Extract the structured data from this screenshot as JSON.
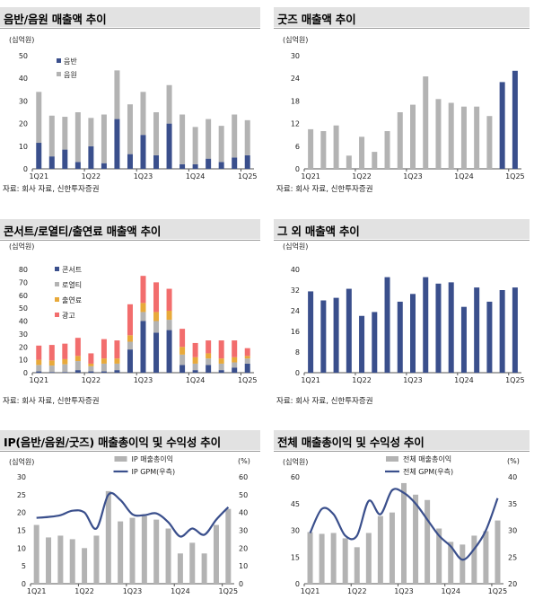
{
  "colors": {
    "navy": "#3a4f8c",
    "gray": "#b3b3b3",
    "red": "#f26d6d",
    "gold": "#e8a93a",
    "header_bg": "#e2e2e2"
  },
  "source": "자료: 회사 자료, 신한투자증권",
  "chart_data": [
    {
      "id": "album",
      "type": "bar",
      "title": "음반/음원 매출액 추이",
      "unit": "(십억원)",
      "categories": [
        "1Q21",
        "2Q21",
        "3Q21",
        "4Q21",
        "1Q22",
        "2Q22",
        "3Q22",
        "4Q22",
        "1Q23",
        "2Q23",
        "3Q23",
        "4Q23",
        "1Q24",
        "2Q24",
        "3Q24",
        "4Q24",
        "1Q25"
      ],
      "x_tick_labels": [
        "1Q21",
        "1Q22",
        "1Q23",
        "1Q24",
        "1Q25"
      ],
      "series": [
        {
          "name": "음반",
          "values": [
            11.5,
            5.5,
            8.5,
            3,
            10,
            2.5,
            22,
            6.5,
            15,
            6,
            20,
            2,
            2,
            4.5,
            3,
            5,
            6
          ]
        },
        {
          "name": "음원",
          "values": [
            22.5,
            18,
            14.5,
            22,
            12.5,
            21.5,
            21.5,
            22,
            19,
            19,
            17,
            22,
            16.5,
            17.5,
            16,
            19,
            15.5
          ]
        }
      ],
      "ylim": [
        0,
        50
      ],
      "yticks": [
        0,
        10,
        20,
        30,
        40,
        50
      ],
      "legend": "top-left"
    },
    {
      "id": "goods",
      "type": "bar",
      "title": "굿즈 매출액 추이",
      "unit": "(십억원)",
      "categories": [
        "1Q21",
        "2Q21",
        "3Q21",
        "4Q21",
        "1Q22",
        "2Q22",
        "3Q22",
        "4Q22",
        "1Q23",
        "2Q23",
        "3Q23",
        "4Q23",
        "1Q24",
        "2Q24",
        "3Q24",
        "4Q24",
        "1Q25"
      ],
      "x_tick_labels": [
        "1Q21",
        "1Q22",
        "1Q23",
        "1Q24",
        "1Q25"
      ],
      "values": [
        10.5,
        10,
        11.5,
        3.5,
        8.5,
        4.5,
        10,
        15,
        17,
        24.5,
        18.5,
        17.5,
        16.5,
        16.5,
        14,
        23,
        26
      ],
      "highlight": [
        false,
        false,
        false,
        false,
        false,
        false,
        false,
        false,
        false,
        false,
        false,
        false,
        false,
        false,
        false,
        true,
        true
      ],
      "ylim": [
        0,
        30
      ],
      "yticks": [
        0,
        6,
        12,
        18,
        24,
        30
      ]
    },
    {
      "id": "concert",
      "type": "bar",
      "title": "콘서트/로열티/출연료 매출액 추이",
      "unit": "(십억원)",
      "categories": [
        "1Q21",
        "2Q21",
        "3Q21",
        "4Q21",
        "1Q22",
        "2Q22",
        "3Q22",
        "4Q22",
        "1Q23",
        "2Q23",
        "3Q23",
        "4Q23",
        "1Q24",
        "2Q24",
        "3Q24",
        "4Q24",
        "1Q25"
      ],
      "x_tick_labels": [
        "1Q21",
        "1Q22",
        "1Q23",
        "1Q24",
        "1Q25"
      ],
      "series": [
        {
          "name": "콘서트",
          "values": [
            1,
            0.5,
            0.5,
            2,
            1,
            1,
            2,
            18,
            40,
            31,
            33,
            6,
            2,
            6,
            2,
            4,
            7
          ]
        },
        {
          "name": "로열티",
          "values": [
            5,
            5,
            6,
            7,
            4,
            6,
            5,
            6,
            7,
            9,
            8,
            8,
            5,
            5,
            5,
            4,
            4
          ]
        },
        {
          "name": "출연료",
          "values": [
            4,
            4,
            4,
            4,
            2,
            4,
            4,
            5,
            7,
            7,
            7,
            6,
            5,
            4,
            4,
            4,
            2
          ]
        },
        {
          "name": "광고",
          "values": [
            11,
            12,
            12,
            14,
            8,
            15,
            14,
            24,
            21,
            23,
            17,
            14,
            11,
            10,
            14,
            13,
            6
          ]
        }
      ],
      "ylim": [
        0,
        80
      ],
      "yticks": [
        0,
        10,
        20,
        30,
        40,
        50,
        60,
        70,
        80
      ],
      "legend": "top-left"
    },
    {
      "id": "other",
      "type": "bar",
      "title": "그 외 매출액 추이",
      "unit": "(십억원)",
      "categories": [
        "1Q21",
        "2Q21",
        "3Q21",
        "4Q21",
        "1Q22",
        "2Q22",
        "3Q22",
        "4Q22",
        "1Q23",
        "2Q23",
        "3Q23",
        "4Q23",
        "1Q24",
        "2Q24",
        "3Q24",
        "4Q24",
        "1Q25"
      ],
      "x_tick_labels": [
        "1Q21",
        "1Q22",
        "1Q23",
        "1Q24",
        "1Q25"
      ],
      "values": [
        31.5,
        28,
        29,
        32.5,
        22,
        23.5,
        37,
        27.5,
        30.5,
        37,
        34.5,
        35,
        25.5,
        33,
        27.5,
        32,
        33
      ],
      "ylim": [
        0,
        40
      ],
      "yticks": [
        0,
        8,
        16,
        24,
        32,
        40
      ]
    },
    {
      "id": "ip",
      "type": "bar-line",
      "title": "IP(음반/음원/굿즈) 매출총이익 및 수익성 추이",
      "unit_left": "(십억원)",
      "unit_right": "(%)",
      "categories": [
        "1Q21",
        "2Q21",
        "3Q21",
        "4Q21",
        "1Q22",
        "2Q22",
        "3Q22",
        "4Q22",
        "1Q23",
        "2Q23",
        "3Q23",
        "4Q23",
        "1Q24",
        "2Q24",
        "3Q24",
        "4Q24",
        "1Q25"
      ],
      "x_tick_labels": [
        "1Q21",
        "1Q22",
        "1Q23",
        "1Q24",
        "1Q25"
      ],
      "bar_series": {
        "name": "IP 매출총이익",
        "values": [
          16.5,
          13,
          13.5,
          12.5,
          10,
          13.5,
          26,
          17.5,
          18.5,
          19,
          18,
          15.5,
          8.5,
          11.5,
          8.5,
          16.5,
          21
        ]
      },
      "line_series": {
        "name": "IP GPM(우측)",
        "values": [
          37,
          37.5,
          38.5,
          41,
          40,
          31,
          50,
          47,
          39,
          38.5,
          39.5,
          34.5,
          26.5,
          31,
          27.5,
          36,
          43
        ]
      },
      "ylim_left": [
        0,
        30
      ],
      "yticks_left": [
        0,
        5,
        10,
        15,
        20,
        25,
        30
      ],
      "ylim_right": [
        0,
        60
      ],
      "yticks_right": [
        0,
        10,
        20,
        30,
        40,
        50,
        60
      ],
      "legend": "top-center"
    },
    {
      "id": "total",
      "type": "bar-line",
      "title": "전체 매출총이익 및 수익성 추이",
      "unit_left": "(십억원)",
      "unit_right": "(%)",
      "categories": [
        "1Q21",
        "2Q21",
        "3Q21",
        "4Q21",
        "1Q22",
        "2Q22",
        "3Q22",
        "4Q22",
        "1Q23",
        "2Q23",
        "3Q23",
        "4Q23",
        "1Q24",
        "2Q24",
        "3Q24",
        "4Q24",
        "1Q25"
      ],
      "x_tick_labels": [
        "1Q21",
        "1Q22",
        "1Q23",
        "1Q24",
        "1Q25"
      ],
      "bar_series": {
        "name": "전체 매출총이익",
        "values": [
          29,
          28,
          28.5,
          25.5,
          20.5,
          28.5,
          38,
          40,
          56.5,
          50,
          47,
          31,
          23.5,
          22,
          27,
          29.5,
          35.5
        ]
      },
      "line_series": {
        "name": "전체 GPM(우측)",
        "values": [
          29.5,
          34,
          33,
          29,
          29,
          35.5,
          33,
          37.5,
          37,
          35,
          32,
          29,
          27,
          24.5,
          26.5,
          30,
          36
        ]
      },
      "ylim_left": [
        0,
        60
      ],
      "yticks_left": [
        0,
        15,
        30,
        45,
        60
      ],
      "ylim_right": [
        20,
        40
      ],
      "yticks_right": [
        20,
        25,
        30,
        35,
        40
      ],
      "legend": "top-center"
    }
  ]
}
